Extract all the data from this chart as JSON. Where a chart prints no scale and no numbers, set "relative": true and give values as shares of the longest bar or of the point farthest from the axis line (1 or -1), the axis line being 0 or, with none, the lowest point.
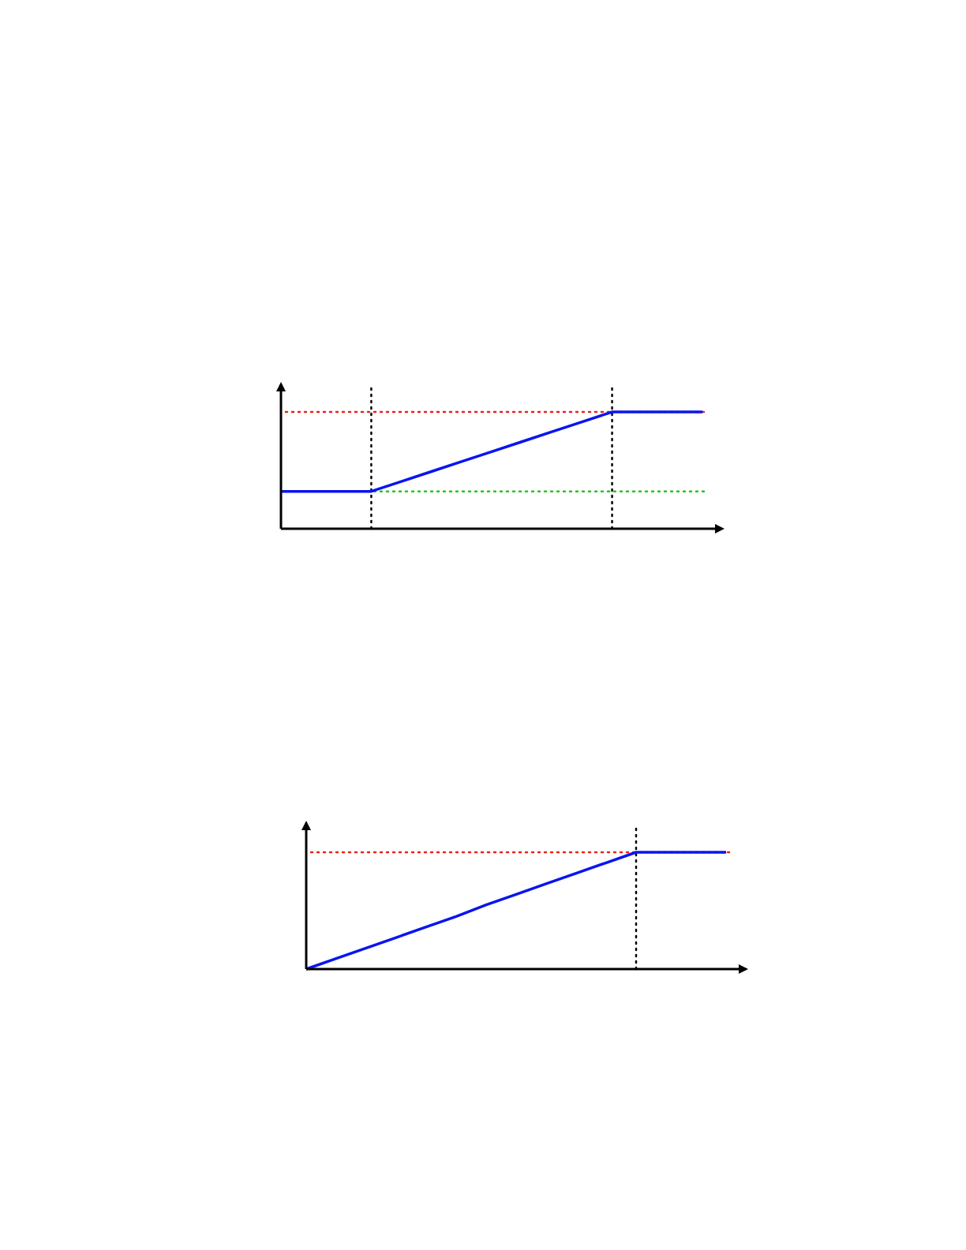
{
  "chart_data": [
    {
      "type": "line",
      "relative": true,
      "categories": [
        null,
        null,
        null,
        null,
        null,
        null,
        null,
        null,
        null,
        null,
        null,
        null,
        null,
        null,
        null
      ],
      "series": [
        {
          "color": "#0a14f0",
          "values": [
            0.32,
            0.32,
            0.32,
            0.32,
            0.405,
            0.49,
            0.575,
            0.66,
            0.745,
            0.83,
            0.915,
            1,
            1,
            1,
            1
          ]
        }
      ],
      "ref_lines": [
        {
          "axis": "y",
          "value": 1,
          "color": "#e8231c",
          "line_style": "dotted"
        },
        {
          "axis": "y",
          "value": 0.32,
          "color": "#22c51e",
          "line_style": "dotted"
        }
      ],
      "marker": "none",
      "line_style": "solid"
    },
    {
      "type": "line",
      "relative": true,
      "categories": [
        null,
        null,
        null,
        null,
        null,
        null,
        null,
        null,
        null,
        null,
        null,
        null,
        null,
        null,
        null
      ],
      "series": [
        {
          "color": "#0a14f0",
          "values": [
            0,
            0.09,
            0.18,
            0.27,
            0.36,
            0.45,
            0.55,
            0.64,
            0.73,
            0.82,
            0.91,
            1,
            1,
            1,
            1
          ]
        }
      ],
      "ref_lines": [
        {
          "axis": "y",
          "value": 1,
          "color": "#e8231c",
          "line_style": "dotted"
        }
      ],
      "marker": "none",
      "line_style": "solid"
    }
  ]
}
